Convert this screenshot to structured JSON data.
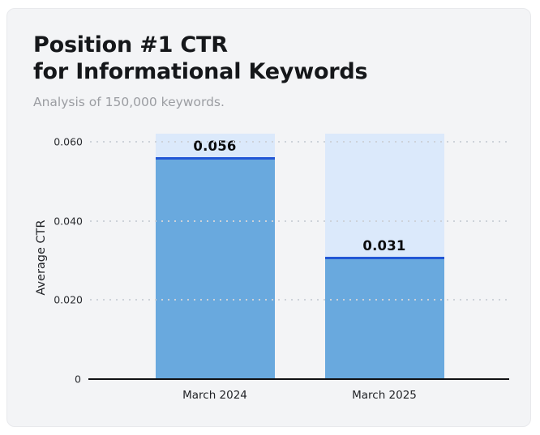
{
  "card": {
    "title_line1": "Position #1 CTR",
    "title_line2": "for Informational Keywords",
    "subtitle": "Analysis of 150,000 keywords."
  },
  "chart_data": {
    "type": "bar",
    "title": "Position #1 CTR for Informational Keywords",
    "subtitle": "Analysis of 150,000 keywords.",
    "xlabel": "",
    "ylabel": "Average CTR",
    "categories": [
      "March 2024",
      "March 2025"
    ],
    "values": [
      0.056,
      0.031
    ],
    "value_labels": [
      "0.056",
      "0.031"
    ],
    "ylim": [
      0,
      0.062
    ],
    "yticks": [
      {
        "value": 0,
        "label": "0"
      },
      {
        "value": 0.02,
        "label": "0.020"
      },
      {
        "value": 0.04,
        "label": "0.040"
      },
      {
        "value": 0.06,
        "label": "0.060"
      }
    ],
    "grid": "horizontal-dotted",
    "legend": "none",
    "colors": {
      "bar_fill": "#69a9de",
      "bar_track": "#dbe9fb",
      "bar_top_border": "#2257d5",
      "axis_line": "#101114",
      "gridline": "#cdd2d9",
      "card_background": "#f3f4f6",
      "title_text": "#15171a",
      "subtitle_text": "#9b9da2"
    }
  }
}
